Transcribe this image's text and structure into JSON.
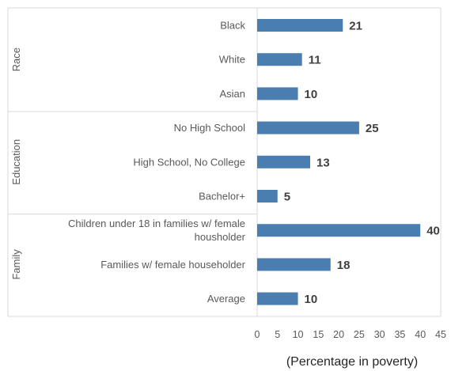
{
  "chart_data": {
    "type": "bar",
    "orientation": "horizontal",
    "xlabel": "(Percentage in poverty)",
    "xlim": [
      0,
      45
    ],
    "xticks": [
      0,
      5,
      10,
      15,
      20,
      25,
      30,
      35,
      40,
      45
    ],
    "bar_color": "#4a7eb0",
    "grid": false,
    "groups": [
      {
        "name": "Race",
        "items": [
          {
            "label": [
              "Black"
            ],
            "value": 21
          },
          {
            "label": [
              "White"
            ],
            "value": 11
          },
          {
            "label": [
              "Asian"
            ],
            "value": 10
          }
        ]
      },
      {
        "name": "Education",
        "items": [
          {
            "label": [
              "No High School"
            ],
            "value": 25
          },
          {
            "label": [
              "High School, No College"
            ],
            "value": 13
          },
          {
            "label": [
              "Bachelor+"
            ],
            "value": 5
          }
        ]
      },
      {
        "name": "Family",
        "items": [
          {
            "label": [
              "Children under 18 in families w/ female",
              "housholder"
            ],
            "value": 40
          },
          {
            "label": [
              "Families w/ female householder"
            ],
            "value": 18
          },
          {
            "label": [
              "Average"
            ],
            "value": 10
          }
        ]
      }
    ]
  }
}
